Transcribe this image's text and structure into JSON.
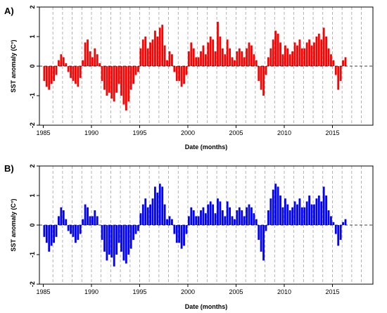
{
  "chart_data": [
    {
      "type": "bar",
      "panel_label": "A)",
      "xlabel": "Date (months)",
      "ylabel": "SST anomaly (C°)",
      "ylim": [
        -2,
        2
      ],
      "yticks": [
        -2,
        -1,
        0,
        1,
        2
      ],
      "xlim": [
        1984.6,
        2019.2
      ],
      "xticks": [
        1985,
        1990,
        1995,
        2000,
        2005,
        2010,
        2015
      ],
      "xtick_labels": [
        "1985",
        "1990",
        "1995",
        "2000",
        "2005",
        "2010",
        "2015"
      ],
      "year_gridlines": [
        1986,
        1987,
        1988,
        1989,
        1990,
        1991,
        1992,
        1993,
        1994,
        1995,
        1996,
        1997,
        1998,
        1999,
        2000,
        2001,
        2002,
        2003,
        2004,
        2005,
        2006,
        2007,
        2008,
        2009,
        2010,
        2011,
        2012,
        2013,
        2014,
        2015,
        2016,
        2017,
        2018
      ],
      "zero_line": "dashed",
      "color": "#ff0000",
      "series": [
        {
          "x_start": 1985.0,
          "x_step": 0.25,
          "values": [
            -0.5,
            -0.7,
            -0.8,
            -0.6,
            -0.5,
            -0.3,
            0.2,
            0.4,
            0.3,
            0.1,
            -0.2,
            -0.4,
            -0.5,
            -0.6,
            -0.7,
            -0.4,
            0.2,
            0.8,
            0.9,
            0.5,
            0.3,
            0.6,
            0.4,
            0.1,
            -0.5,
            -0.8,
            -1.0,
            -0.9,
            -1.1,
            -1.2,
            -0.9,
            -0.6,
            -1.0,
            -1.3,
            -1.5,
            -1.2,
            -0.8,
            -0.6,
            -0.3,
            -0.2,
            0.6,
            0.9,
            1.0,
            0.6,
            0.8,
            0.9,
            1.2,
            1.0,
            1.3,
            1.4,
            0.7,
            0.2,
            0.5,
            0.4,
            -0.2,
            -0.5,
            -0.5,
            -0.7,
            -0.6,
            -0.3,
            0.5,
            0.8,
            0.6,
            0.3,
            0.3,
            0.5,
            0.7,
            0.4,
            0.8,
            1.0,
            0.9,
            0.5,
            1.5,
            1.0,
            0.6,
            0.4,
            0.9,
            0.6,
            0.3,
            0.2,
            0.5,
            0.6,
            0.5,
            0.3,
            0.6,
            0.8,
            0.7,
            0.4,
            0.2,
            -0.5,
            -0.8,
            -1.0,
            -0.3,
            0.3,
            0.6,
            0.9,
            1.2,
            1.1,
            0.8,
            0.4,
            0.7,
            0.6,
            0.4,
            0.5,
            0.8,
            0.7,
            0.9,
            0.6,
            0.6,
            0.8,
            0.9,
            0.7,
            0.8,
            1.0,
            1.1,
            0.9,
            1.3,
            1.0,
            0.6,
            0.4,
            0.2,
            -0.3,
            -0.8,
            -0.5,
            0.2,
            0.3
          ]
        }
      ]
    },
    {
      "type": "bar",
      "panel_label": "B)",
      "xlabel": "Date (months)",
      "ylabel": "SST anomaly (C°)",
      "ylim": [
        -2,
        2
      ],
      "yticks": [
        -2,
        -1,
        0,
        1,
        2
      ],
      "xlim": [
        1984.6,
        2019.2
      ],
      "xticks": [
        1985,
        1990,
        1995,
        2000,
        2005,
        2010,
        2015
      ],
      "xtick_labels": [
        "1985",
        "1990",
        "1995",
        "2000",
        "2005",
        "2010",
        "2015"
      ],
      "year_gridlines": [
        1986,
        1987,
        1988,
        1989,
        1990,
        1991,
        1992,
        1993,
        1994,
        1995,
        1996,
        1997,
        1998,
        1999,
        2000,
        2001,
        2002,
        2003,
        2004,
        2005,
        2006,
        2007,
        2008,
        2009,
        2010,
        2011,
        2012,
        2013,
        2014,
        2015,
        2016,
        2017,
        2018
      ],
      "zero_line": "dashed",
      "color": "#0000ff",
      "series": [
        {
          "x_start": 1985.0,
          "x_step": 0.25,
          "values": [
            -0.4,
            -0.6,
            -0.9,
            -0.7,
            -0.6,
            -0.4,
            0.3,
            0.6,
            0.5,
            0.2,
            -0.2,
            -0.3,
            -0.4,
            -0.6,
            -0.5,
            -0.3,
            0.2,
            0.7,
            0.6,
            0.3,
            0.3,
            0.5,
            0.3,
            0.0,
            -0.5,
            -0.9,
            -1.2,
            -1.0,
            -1.1,
            -1.4,
            -1.0,
            -0.6,
            -0.9,
            -1.2,
            -1.3,
            -1.0,
            -0.8,
            -0.5,
            -0.3,
            -0.2,
            0.4,
            0.7,
            0.9,
            0.6,
            0.7,
            0.9,
            1.3,
            1.1,
            1.4,
            1.3,
            0.7,
            0.2,
            0.3,
            0.2,
            -0.3,
            -0.6,
            -0.6,
            -0.8,
            -0.7,
            -0.3,
            0.3,
            0.6,
            0.5,
            0.3,
            0.3,
            0.5,
            0.6,
            0.4,
            0.7,
            0.8,
            0.7,
            0.4,
            0.9,
            0.8,
            0.5,
            0.3,
            0.8,
            0.6,
            0.3,
            0.2,
            0.5,
            0.6,
            0.5,
            0.3,
            0.6,
            0.7,
            0.6,
            0.4,
            0.2,
            -0.5,
            -0.9,
            -1.2,
            -0.2,
            0.5,
            0.9,
            1.2,
            1.4,
            1.3,
            1.0,
            0.6,
            0.9,
            0.7,
            0.5,
            0.6,
            0.8,
            0.7,
            0.9,
            0.6,
            0.6,
            0.8,
            1.0,
            0.7,
            0.7,
            0.9,
            1.0,
            0.8,
            1.3,
            1.0,
            0.5,
            0.3,
            0.1,
            -0.3,
            -0.7,
            -0.5,
            0.1,
            0.2
          ]
        }
      ]
    }
  ]
}
